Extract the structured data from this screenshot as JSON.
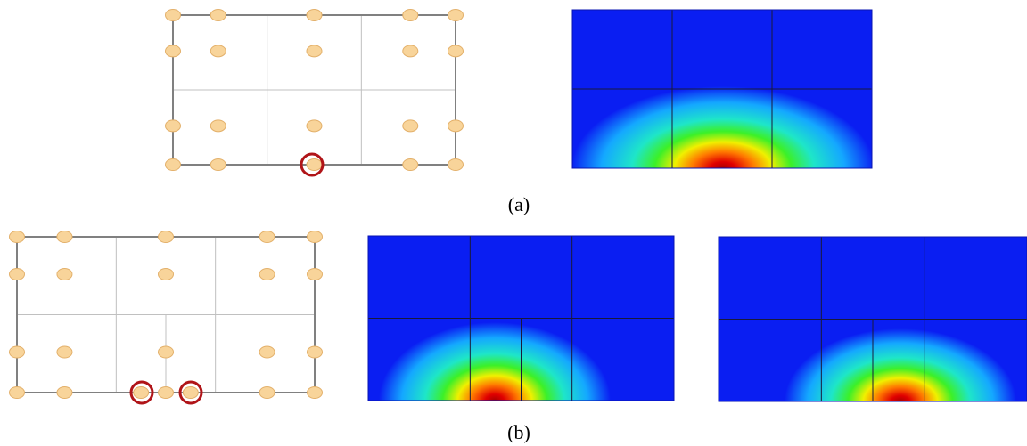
{
  "captions": {
    "a": "(a)",
    "b": "(b)"
  },
  "colors": {
    "node_fill": "#f8d49a",
    "node_stroke": "#e3b06a",
    "highlight_ring": "#b01418",
    "mesh_outline": "#808080",
    "mesh_inner": "#c0c0c0",
    "field_background": "#0a1ef2",
    "field_gridline": "#1a1a3a"
  },
  "colormap": [
    "#0a1ef2",
    "#14a8ff",
    "#1ee6c8",
    "#3cf028",
    "#f0f000",
    "#ff7800",
    "#e00000",
    "#a80000"
  ],
  "panels": {
    "a_mesh": {
      "elements": {
        "cols": 3,
        "rows": 2
      },
      "highlighted_node_count": 1
    },
    "a_field": {
      "elements": {
        "cols": 3,
        "rows": 2
      }
    },
    "b_mesh": {
      "elements": {
        "cols": 3,
        "rows": 2
      },
      "refined_element": "bottom-middle",
      "highlighted_node_count": 2
    },
    "b_field_left": {
      "elements": {
        "cols": 3,
        "rows": 2
      },
      "refined_element": "bottom-middle"
    },
    "b_field_right": {
      "elements": {
        "cols": 3,
        "rows": 2
      },
      "refined_element": "bottom-middle"
    }
  }
}
